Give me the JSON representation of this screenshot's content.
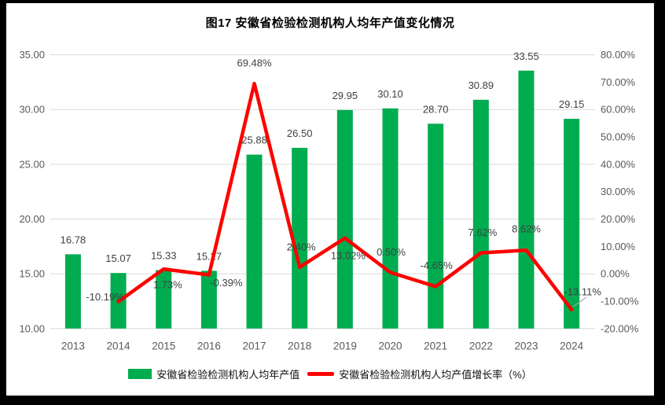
{
  "title": "图17 安徽省检验检测机构人均年产值变化情况",
  "legend": {
    "items": [
      {
        "label": "安徽省检验检测机构人均年产值",
        "swatch": "bar"
      },
      {
        "label": "安徽省检验检测机构人均产值增长率（%）",
        "swatch": "line"
      }
    ],
    "position": "bottom"
  },
  "colors": {
    "bar": "#00AC50",
    "line": "#FE0000",
    "grid": "#D9D9D9",
    "axis_text": "#595959",
    "data_label": "#404040",
    "title_text": "#000000",
    "leader": "#A6A6A6",
    "canvas_bg": "#FFFFFF",
    "frame_bg": "#000000"
  },
  "chart_data": {
    "type": "bar+line combo",
    "title": "图17 安徽省检验检测机构人均年产值变化情况",
    "categories": [
      "2013",
      "2014",
      "2015",
      "2016",
      "2017",
      "2018",
      "2019",
      "2020",
      "2021",
      "2022",
      "2023",
      "2024"
    ],
    "series": [
      {
        "name": "安徽省检验检测机构人均年产值",
        "type": "bar",
        "axis": "left",
        "values": [
          16.78,
          15.07,
          15.33,
          15.27,
          25.88,
          26.5,
          29.95,
          30.1,
          28.7,
          30.89,
          33.55,
          29.15
        ],
        "labels": [
          "16.78",
          "15.07",
          "15.33",
          "15.27",
          "25.88",
          "26.50",
          "29.95",
          "30.10",
          "28.70",
          "30.89",
          "33.55",
          "29.15"
        ]
      },
      {
        "name": "安徽省检验检测机构人均产值增长率（%）",
        "type": "line",
        "axis": "right",
        "values": [
          null,
          -10.19,
          1.73,
          -0.39,
          69.48,
          2.4,
          13.02,
          0.5,
          -4.65,
          7.62,
          8.62,
          -13.11
        ],
        "labels": [
          null,
          "-10.19%",
          "1.73%",
          "-0.39%",
          "69.48%",
          "2.40%",
          "13.02%",
          "0.50%",
          "-4.65%",
          "7.62%",
          "8.62%",
          "-13.11%"
        ]
      }
    ],
    "left_axis": {
      "min": 10,
      "max": 35,
      "tick_interval": 5,
      "tick_labels_top_to_bottom": [
        "35.00",
        "30.00",
        "25.00",
        "20.00",
        "15.00",
        "10.00"
      ]
    },
    "right_axis": {
      "min": -20,
      "max": 80,
      "tick_interval": 10,
      "gridline_interval": 20,
      "tick_labels_top_to_bottom": [
        "80.00%",
        "70.00%",
        "60.00%",
        "50.00%",
        "40.00%",
        "30.00%",
        "20.00%",
        "10.00%",
        "0.00%",
        "-10.00%",
        "-20.00%"
      ]
    },
    "grid": "horizontal gridlines only",
    "legend_position": "bottom"
  },
  "layout_hints": {
    "line_label_offsets": [
      null,
      [
        -17,
        -6
      ],
      [
        5,
        20
      ],
      [
        22,
        10
      ],
      [
        0,
        -26
      ],
      [
        2,
        -26
      ],
      [
        4,
        22
      ],
      [
        1,
        -26
      ],
      [
        1,
        -27
      ],
      [
        2,
        -26
      ],
      [
        0,
        -27
      ],
      [
        14,
        -23
      ]
    ],
    "leader_line_2024": {
      "x1": 729,
      "y1": 390,
      "x2": 746,
      "y2": 378
    }
  }
}
